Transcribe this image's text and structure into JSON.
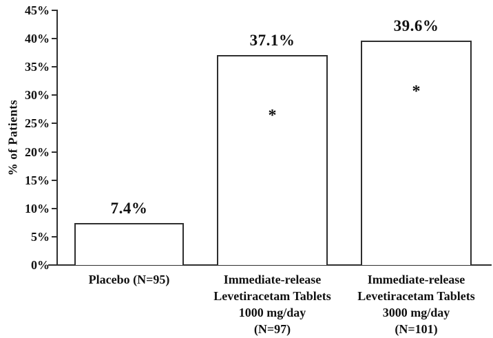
{
  "chart_data": {
    "type": "bar",
    "title": "",
    "xlabel": "",
    "ylabel": "% of Patients",
    "ylim": [
      0,
      45
    ],
    "grid": false,
    "legend": null,
    "categories": [
      "Placebo (N=95)",
      "Immediate-release Levetiracetam Tablets 1000 mg/day (N=97)",
      "Immediate-release Levetiracetam Tablets 3000 mg/day (N=101)"
    ],
    "values": [
      7.4,
      37.1,
      39.6
    ],
    "yticks": {
      "values": [
        0,
        5,
        10,
        15,
        20,
        25,
        30,
        35,
        40,
        45
      ],
      "labels": [
        "0%",
        "5%",
        "10%",
        "15%",
        "20%",
        "25%",
        "30%",
        "35%",
        "40%",
        "45%"
      ]
    },
    "bars": [
      {
        "category_lines": [
          "Placebo (N=95)"
        ],
        "value": 7.4,
        "value_label": "7.4%",
        "marker": null,
        "marker_y_pct": null
      },
      {
        "category_lines": [
          "Immediate-release",
          "Levetiracetam Tablets",
          "1000 mg/day",
          "(N=97)"
        ],
        "value": 37.1,
        "value_label": "37.1%",
        "marker": "*",
        "marker_y_pct": 26.8
      },
      {
        "category_lines": [
          "Immediate-release",
          "Levetiracetam Tablets",
          "3000 mg/day",
          "(N=101)"
        ],
        "value": 39.6,
        "value_label": "39.6%",
        "marker": "*",
        "marker_y_pct": 31.0
      }
    ],
    "colors": {
      "bar_fill": "#ffffff",
      "bar_border": "#2e2e2e",
      "axis": "#2e2e2e",
      "text": "#111111"
    }
  }
}
